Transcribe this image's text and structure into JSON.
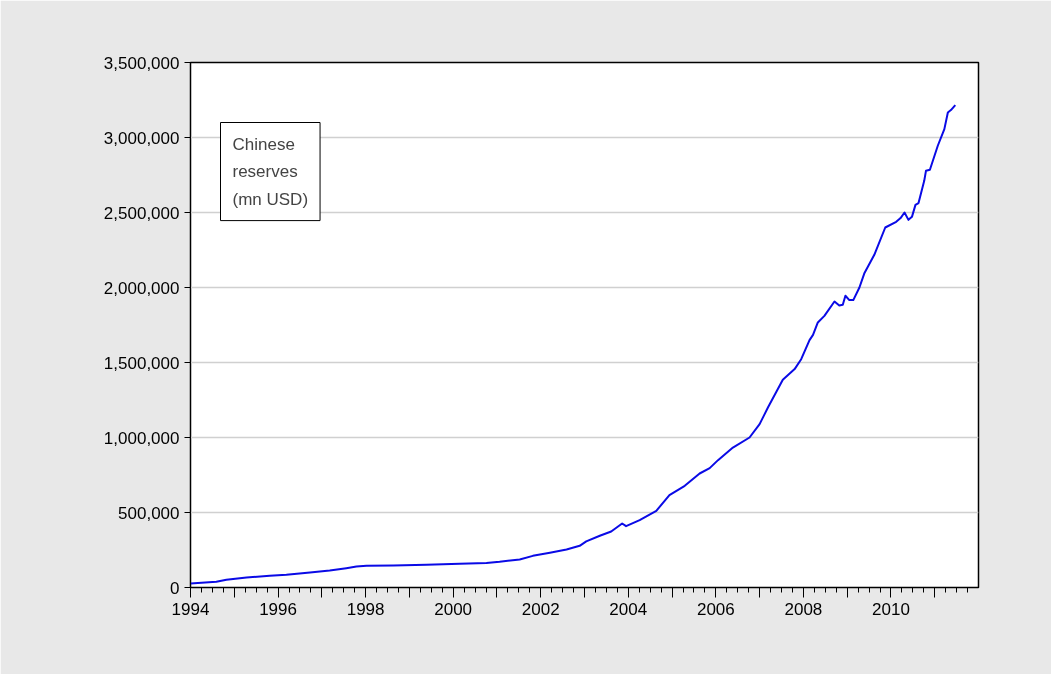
{
  "chart_data": {
    "type": "line",
    "annotations": [
      "Chinese\nreserves\n(mn USD)"
    ],
    "x": [
      1994.0,
      1994.59,
      1994.82,
      1995.28,
      1995.81,
      1996.19,
      1996.73,
      1997.18,
      1997.56,
      1997.79,
      1998.02,
      1998.63,
      1999.39,
      2000.15,
      2000.76,
      2001.06,
      2001.52,
      2001.82,
      2002.21,
      2002.59,
      2002.89,
      2003.04,
      2003.35,
      2003.61,
      2003.86,
      2003.95,
      2004.26,
      2004.64,
      2004.94,
      2005.29,
      2005.63,
      2005.86,
      2006.05,
      2006.39,
      2006.77,
      2007.0,
      2007.19,
      2007.53,
      2007.8,
      2007.95,
      2008.14,
      2008.22,
      2008.33,
      2008.48,
      2008.71,
      2008.82,
      2008.9,
      2008.96,
      2009.05,
      2009.14,
      2009.28,
      2009.39,
      2009.62,
      2009.87,
      2010.12,
      2010.22,
      2010.31,
      2010.4,
      2010.48,
      2010.56,
      2010.63,
      2010.76,
      2010.8,
      2010.89,
      2011.07,
      2011.22,
      2011.3,
      2011.37,
      2011.47
    ],
    "series": [
      {
        "color": "#0a0ae6",
        "values": [
          27000,
          38000,
          51000,
          67000,
          78000,
          85000,
          100000,
          113000,
          129000,
          140000,
          145000,
          147000,
          151000,
          158000,
          163000,
          171000,
          187000,
          211000,
          231000,
          253000,
          278000,
          307000,
          345000,
          373000,
          427000,
          409000,
          449000,
          511000,
          616000,
          678000,
          760000,
          796000,
          849000,
          933000,
          1000000,
          1089000,
          1200000,
          1385000,
          1456000,
          1522000,
          1649000,
          1684000,
          1767000,
          1811000,
          1907000,
          1880000,
          1885000,
          1945000,
          1916000,
          1916000,
          2000000,
          2093000,
          2218000,
          2400000,
          2438000,
          2463000,
          2500000,
          2451000,
          2471000,
          2551000,
          2563000,
          2711000,
          2778000,
          2785000,
          2945000,
          3056000,
          3167000,
          3183000,
          3216000
        ]
      }
    ],
    "xlim": [
      1994,
      2012
    ],
    "xticks": [
      1994,
      {
        "value": 1995,
        "label": null
      },
      1996,
      {
        "value": 1997,
        "label": null
      },
      1998,
      {
        "value": 1999,
        "label": null
      },
      2000,
      {
        "value": 2001,
        "label": null
      },
      2002,
      {
        "value": 2003,
        "label": null
      },
      2004,
      {
        "value": 2005,
        "label": null
      },
      2006,
      {
        "value": 2007,
        "label": null
      },
      2008,
      {
        "value": 2009,
        "label": null
      },
      2010,
      {
        "value": 2011,
        "label": null
      }
    ],
    "ylim": [
      0,
      3500000
    ],
    "yticks": [
      0,
      {
        "value": 500000,
        "label": "500,000"
      },
      {
        "value": 1000000,
        "label": "1,000,000"
      },
      {
        "value": 1500000,
        "label": "1,500,000"
      },
      {
        "value": 2000000,
        "label": "2,000,000"
      },
      {
        "value": 2500000,
        "label": "2,500,000"
      },
      {
        "value": 3000000,
        "label": "3,000,000"
      },
      {
        "value": 3500000,
        "label": "3,500,000"
      }
    ],
    "grid": "y",
    "marker": "none",
    "line_style": "solid"
  }
}
